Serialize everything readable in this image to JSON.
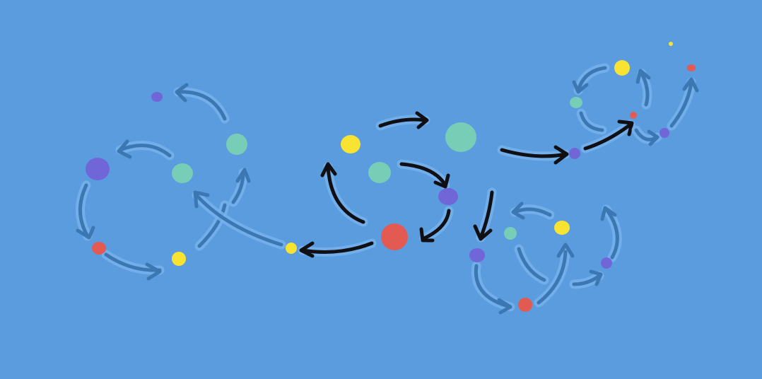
{
  "colors": {
    "background": "#5b9cdf",
    "dot_yellow": "#f8e232",
    "dot_teal": "#78cdb6",
    "dot_purple": "#7066d8",
    "dot_red": "#e35a53",
    "arrow_dark": "#0f0f14",
    "arrow_muted": "#3b77b2",
    "arrow_glow": "#75b2ec"
  },
  "illustration": {
    "groups": [
      "central-cycle",
      "left-cycle",
      "upper-right-cycle",
      "lower-right-cycle"
    ]
  }
}
